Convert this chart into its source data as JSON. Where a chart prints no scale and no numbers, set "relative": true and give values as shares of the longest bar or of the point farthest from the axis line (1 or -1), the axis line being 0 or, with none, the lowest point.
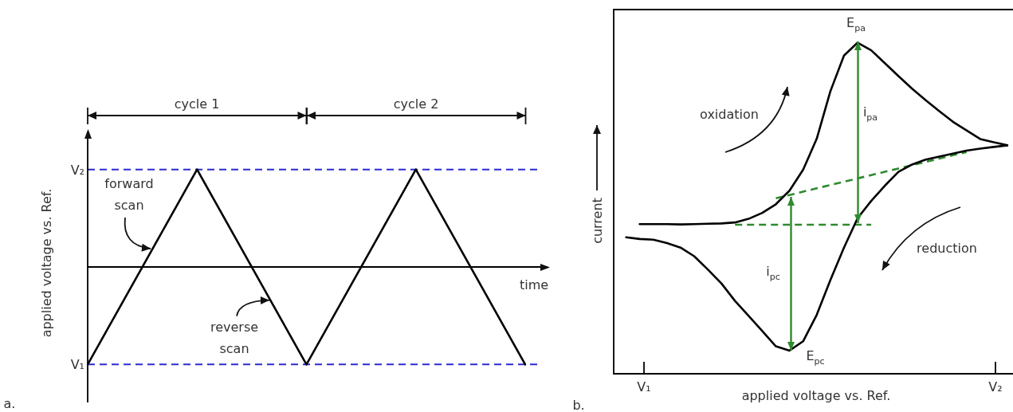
{
  "chart_data": [
    {
      "type": "line",
      "xlabel": "time",
      "ylabel": "applied voltage vs. Ref.",
      "relative": true,
      "categories": [
        null,
        null,
        null,
        null,
        null
      ],
      "series": [
        {
          "color": "#000000",
          "values": [
            -1,
            1,
            -1,
            1,
            -1
          ]
        }
      ],
      "ref_lines": [
        {
          "axis": "y",
          "value": -1,
          "label": "V₁",
          "color": "#2b2bd4",
          "line_style": "dashed"
        },
        {
          "axis": "y",
          "value": 1,
          "label": "V₂",
          "color": "#2b2bd4",
          "line_style": "dashed"
        }
      ],
      "marker": "none",
      "annotations": [
        "cycle 1",
        "cycle 2",
        "forward scan",
        "reverse scan",
        "a."
      ]
    },
    {
      "type": "line",
      "xlabel": "applied voltage vs. Ref.",
      "ylabel": "current",
      "relative": true,
      "marker": "none",
      "categories": [
        null,
        null,
        null,
        null,
        null,
        null,
        null,
        null,
        null,
        null,
        null,
        null,
        null,
        null,
        null,
        null,
        null,
        null,
        null,
        null,
        null,
        null,
        null,
        null,
        null,
        null,
        null,
        null,
        null
      ],
      "series": [
        {
          "color": "#000000",
          "values": [
            null,
            0.452,
            0.452,
            0.452,
            0.451,
            0.452,
            0.453,
            0.454,
            0.457,
            0.468,
            0.486,
            0.512,
            0.553,
            0.616,
            0.71,
            0.853,
            0.961,
            1,
            0.977,
            0.938,
            0.899,
            0.861,
            0.826,
            0.793,
            0.761,
            0.735,
            0.709,
            0.699,
            0.69
          ]
        },
        {
          "color": "#000000",
          "values": [
            0.412,
            0.407,
            0.405,
            0.395,
            0.381,
            0.355,
            0.315,
            0.273,
            0.22,
            0.175,
            0.129,
            0.083,
            0.07,
            0.098,
            0.178,
            0.283,
            0.381,
            0.47,
            0.522,
            0.568,
            0.61,
            0.632,
            0.647,
            0.656,
            0.665,
            0.674,
            0.68,
            0.685,
            0.69
          ]
        },
        {
          "color": "#2f8a2f",
          "line_style": "dashed",
          "values": [
            null,
            null,
            null,
            null,
            null,
            null,
            null,
            null,
            0.45,
            0.45,
            0.45,
            0.45,
            0.45,
            0.45,
            0.45,
            0.45,
            0.45,
            0.45,
            0.45,
            null,
            null,
            null,
            null,
            null,
            null,
            null,
            null,
            null,
            null
          ]
        },
        {
          "color": "#2f8a2f",
          "line_style": "dashed",
          "values": [
            null,
            null,
            null,
            null,
            null,
            null,
            null,
            null,
            null,
            null,
            null,
            0.53,
            0.54,
            0.55,
            0.56,
            0.57,
            0.58,
            0.59,
            0.6,
            0.61,
            0.62,
            0.63,
            0.64,
            0.65,
            0.66,
            0.67,
            null,
            null,
            null
          ]
        }
      ],
      "annotations": [
        "E$_{pa}$",
        "E$_{pc}$",
        "i$_{pa}$",
        "i$_{pc}$",
        "oxidation",
        "reduction",
        "b.",
        "V₁",
        "V₂"
      ]
    }
  ]
}
